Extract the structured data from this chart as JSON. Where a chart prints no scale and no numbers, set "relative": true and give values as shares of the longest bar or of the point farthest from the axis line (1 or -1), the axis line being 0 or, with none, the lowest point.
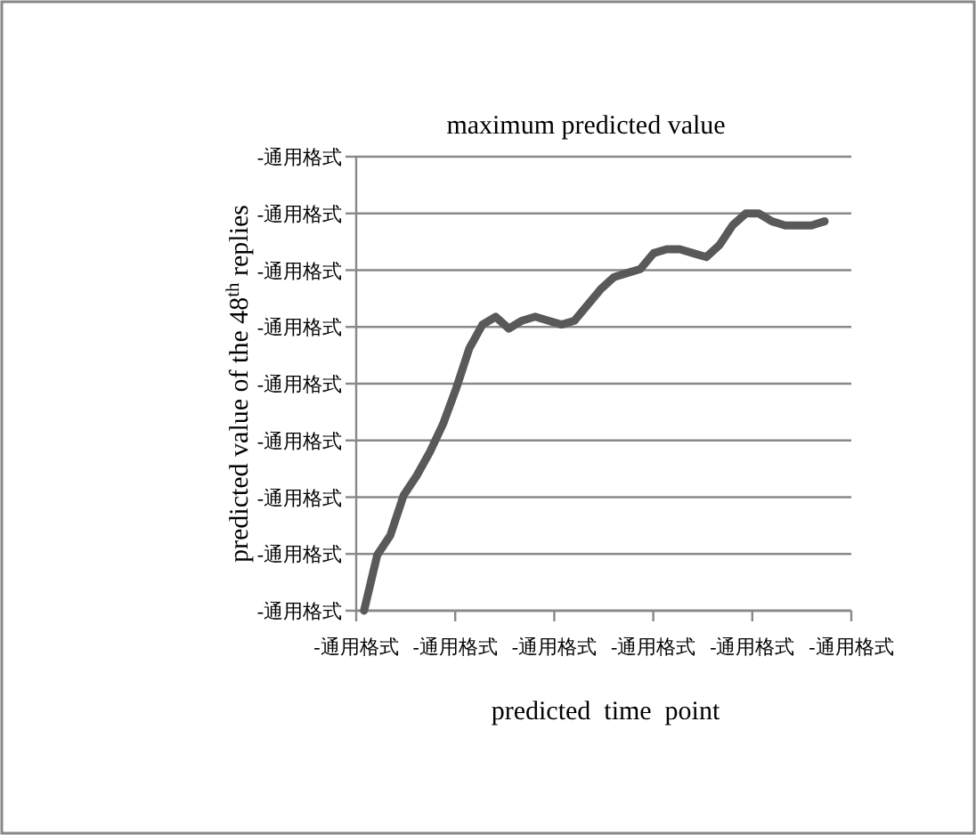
{
  "chart_data": {
    "type": "line",
    "title": "maximum predicted value",
    "xlabel": "predicted  time  point",
    "ylabel": "predicted value of the 48$^{th}$ replies",
    "relative": true,
    "grid": "y",
    "categories": [
      null,
      null,
      null,
      null,
      null,
      null,
      null,
      null,
      null,
      null,
      null,
      null,
      null,
      null,
      null,
      null,
      null,
      null,
      null,
      null,
      null,
      null,
      null,
      null,
      null,
      null,
      null,
      null,
      null,
      null,
      null,
      null,
      null,
      null,
      null,
      null
    ],
    "annotations": [
      "-通用格式",
      "-通用格式",
      "-通用格式",
      "-通用格式",
      "-通用格式",
      "-通用格式",
      "-通用格式",
      "-通用格式",
      "-通用格式",
      "-通用格式",
      "-通用格式",
      "-通用格式",
      "-通用格式",
      "-通用格式",
      "-通用格式"
    ],
    "series": [
      {
        "color": "#595959",
        "values": [
          0,
          0.14,
          0.19,
          0.29,
          0.34,
          0.4,
          0.47,
          0.56,
          0.66,
          0.72,
          0.74,
          0.71,
          0.73,
          0.74,
          0.73,
          0.72,
          0.73,
          0.77,
          0.81,
          0.84,
          0.85,
          0.86,
          0.9,
          0.91,
          0.91,
          0.9,
          0.89,
          0.92,
          0.97,
          1.0,
          1.0,
          0.98,
          0.97,
          0.97,
          0.97,
          0.98
        ]
      }
    ]
  }
}
